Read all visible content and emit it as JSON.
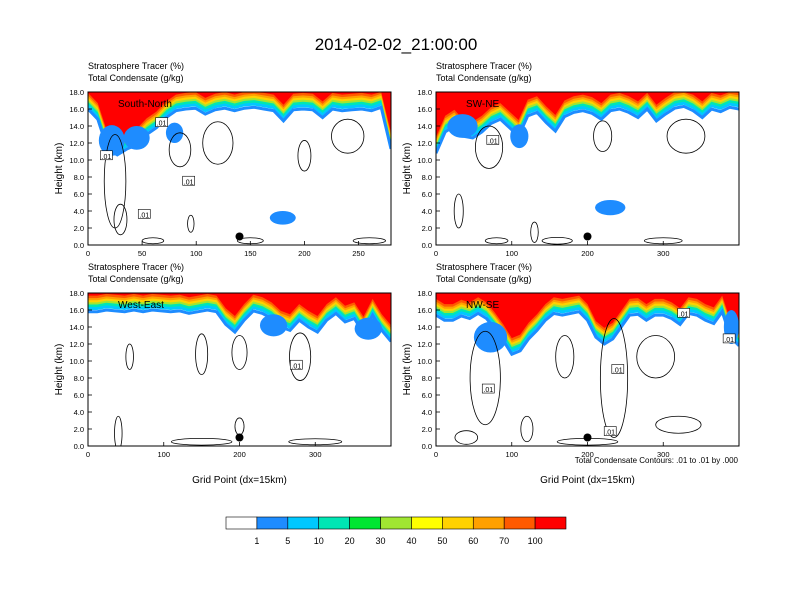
{
  "chart_data": {
    "type": "heatmap",
    "title": "2014-02-02_21:00:00",
    "colorbar": {
      "colors": [
        "#ffffff",
        "#1e8cff",
        "#00c8ff",
        "#00e6b4",
        "#00e632",
        "#a0e632",
        "#ffff00",
        "#ffd200",
        "#ffa000",
        "#ff5a00",
        "#ff0000"
      ],
      "tick_labels": [
        "1",
        "5",
        "10",
        "20",
        "30",
        "40",
        "50",
        "60",
        "70",
        "100"
      ]
    },
    "contour_note": "Total Condensate Contours: .01 to .01 by .000",
    "panels": [
      {
        "name": "South-North",
        "line1": "Stratosphere Tracer   (%)",
        "line2": "Total Condensate   (g/kg)",
        "ylabel": "Height (km)",
        "xlabel": "",
        "xlim": [
          0,
          280
        ],
        "ylim": [
          0,
          18
        ],
        "xticks": [
          "0",
          "50",
          "100",
          "150",
          "200",
          "250"
        ],
        "yticks": [
          "0.0",
          "2.0",
          "4.0",
          "6.0",
          "8.0",
          "10.0",
          "12.0",
          "14.0",
          "16.0",
          "18.0"
        ],
        "marker": [
          140,
          1.0
        ],
        "contour_labels": [
          [
            17,
            10.5,
            ".01"
          ],
          [
            68,
            14.4,
            ".01"
          ],
          [
            93,
            7.5,
            ".01"
          ],
          [
            52,
            3.6,
            ".01"
          ]
        ],
        "color_profile": [
          16.2,
          15.0,
          11.5,
          10.8,
          11.5,
          12.0,
          13.2,
          14.0,
          15.2,
          16.0,
          16.2,
          16.3,
          15.6,
          16.1,
          16.3,
          16.0,
          16.3,
          16.4,
          16.2,
          16.0,
          14.8,
          16.1,
          16.2,
          16.1,
          15.2,
          16.2,
          16.0,
          16.1,
          16.2,
          16.0,
          16.4,
          11.5
        ]
      },
      {
        "name": "SW-NE",
        "line1": "Stratosphere Tracer   (%)",
        "line2": "Total Condensate   (g/kg)",
        "ylabel": "Height (km)",
        "xlabel": "",
        "xlim": [
          0,
          400
        ],
        "ylim": [
          0,
          18
        ],
        "xticks": [
          "0",
          "100",
          "200",
          "300"
        ],
        "yticks": [
          "0.0",
          "2.0",
          "4.0",
          "6.0",
          "8.0",
          "10.0",
          "12.0",
          "14.0",
          "16.0",
          "18.0"
        ],
        "marker": [
          200,
          1.0
        ],
        "contour_labels": [
          [
            75,
            12.3,
            ".01"
          ]
        ],
        "color_profile": [
          11.0,
          13.5,
          14.2,
          13.0,
          12.8,
          13.5,
          14.5,
          15.0,
          14.0,
          13.0,
          15.4,
          15.8,
          14.6,
          13.6,
          15.3,
          15.8,
          16.0,
          15.7,
          15.0,
          16.0,
          16.2,
          15.8,
          15.2,
          16.2,
          14.8,
          15.6,
          16.3,
          16.5,
          16.0,
          15.2,
          16.2,
          15.9,
          16.4,
          16.2
        ]
      },
      {
        "name": "West-East",
        "line1": "Stratosphere Tracer   (%)",
        "line2": "Total Condensate   (g/kg)",
        "ylabel": "Height (km)",
        "xlabel": "Grid Point (dx=15km)",
        "xlim": [
          0,
          400
        ],
        "ylim": [
          0,
          18
        ],
        "xticks": [
          "0",
          "100",
          "200",
          "300"
        ],
        "yticks": [
          "0.0",
          "2.0",
          "4.0",
          "6.0",
          "8.0",
          "10.0",
          "12.0",
          "14.0",
          "16.0",
          "18.0"
        ],
        "marker": [
          200,
          1.0
        ],
        "contour_labels": [
          [
            275,
            9.5,
            ".01"
          ]
        ],
        "color_profile": [
          16.0,
          16.0,
          16.2,
          16.1,
          16.0,
          16.2,
          16.0,
          16.2,
          16.1,
          16.0,
          16.1,
          15.8,
          16.0,
          16.2,
          16.0,
          14.5,
          13.6,
          15.0,
          16.1,
          15.8,
          15.2,
          14.2,
          13.8,
          15.0,
          14.2,
          13.6,
          15.0,
          15.8,
          14.8,
          15.2,
          13.5,
          15.6,
          13.8,
          12.5
        ]
      },
      {
        "name": "NW-SE",
        "line1": "Stratosphere Tracer   (%)",
        "line2": "Total Condensate   (g/kg)",
        "ylabel": "Height (km)",
        "xlabel": "Grid Point (dx=15km)",
        "xlim": [
          0,
          400
        ],
        "ylim": [
          0,
          18
        ],
        "xticks": [
          "0",
          "100",
          "200",
          "300"
        ],
        "yticks": [
          "0.0",
          "2.0",
          "4.0",
          "6.0",
          "8.0",
          "10.0",
          "12.0",
          "14.0",
          "16.0",
          "18.0"
        ],
        "marker": [
          200,
          1.0
        ],
        "contour_labels": [
          [
            69,
            6.7,
            ".01"
          ],
          [
            240,
            9.0,
            ".01"
          ],
          [
            230,
            1.7,
            ".01"
          ],
          [
            327,
            15.6,
            ".01"
          ],
          [
            387,
            12.6,
            ".01"
          ]
        ],
        "color_profile": [
          15.6,
          15.0,
          15.0,
          15.5,
          15.2,
          15.8,
          15.2,
          14.0,
          12.6,
          11.0,
          11.4,
          12.8,
          13.8,
          15.0,
          15.8,
          15.6,
          15.8,
          16.0,
          15.0,
          13.0,
          12.2,
          12.8,
          14.2,
          15.6,
          15.7,
          15.0,
          15.6,
          15.6,
          15.2,
          14.5,
          15.8,
          15.6,
          15.0,
          14.6,
          16.0,
          13.0,
          12.0
        ]
      }
    ]
  }
}
